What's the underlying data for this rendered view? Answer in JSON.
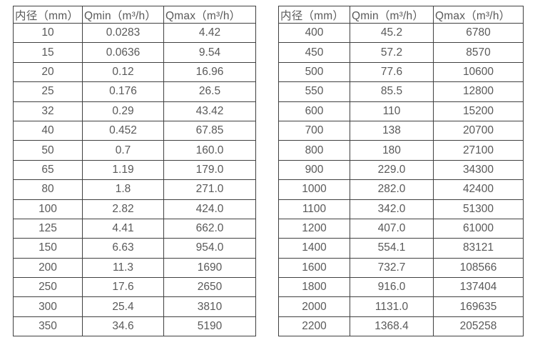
{
  "page": {
    "background": "#ffffff",
    "border_color": "#404040",
    "text_color": "#595959"
  },
  "tables": [
    {
      "name": "flow-table-left",
      "headers": [
        "内径（mm）",
        "Qmin（m³/h）",
        "Qmax（m³/h）"
      ],
      "rows": [
        [
          "10",
          "0.0283",
          "4.42"
        ],
        [
          "15",
          "0.0636",
          "9.54"
        ],
        [
          "20",
          "0.12",
          "16.96"
        ],
        [
          "25",
          "0.176",
          "26.5"
        ],
        [
          "32",
          "0.29",
          "43.42"
        ],
        [
          "40",
          "0.452",
          "67.85"
        ],
        [
          "50",
          "0.7",
          "160.0"
        ],
        [
          "65",
          "1.19",
          "179.0"
        ],
        [
          "80",
          "1.8",
          "271.0"
        ],
        [
          "100",
          "2.82",
          "424.0"
        ],
        [
          "125",
          "4.41",
          "662.0"
        ],
        [
          "150",
          "6.63",
          "954.0"
        ],
        [
          "200",
          "11.3",
          "1690"
        ],
        [
          "250",
          "17.6",
          "2650"
        ],
        [
          "300",
          "25.4",
          "3810"
        ],
        [
          "350",
          "34.6",
          "5190"
        ]
      ]
    },
    {
      "name": "flow-table-right",
      "headers": [
        "内径（mm）",
        "Qmin（m³/h）",
        "Qmax（m³/h）"
      ],
      "rows": [
        [
          "400",
          "45.2",
          "6780"
        ],
        [
          "450",
          "57.2",
          "8570"
        ],
        [
          "500",
          "77.6",
          "10600"
        ],
        [
          "550",
          "85.5",
          "12800"
        ],
        [
          "600",
          "110",
          "15200"
        ],
        [
          "700",
          "138",
          "20700"
        ],
        [
          "800",
          "180",
          "27100"
        ],
        [
          "900",
          "229.0",
          "34300"
        ],
        [
          "1000",
          "282.0",
          "42400"
        ],
        [
          "1100",
          "342.0",
          "51300"
        ],
        [
          "1200",
          "407.0",
          "61000"
        ],
        [
          "1400",
          "554.1",
          "83121"
        ],
        [
          "1600",
          "732.7",
          "108566"
        ],
        [
          "1800",
          "916.0",
          "137404"
        ],
        [
          "2000",
          "1131.0",
          "169635"
        ],
        [
          "2200",
          "1368.4",
          "205258"
        ]
      ]
    }
  ]
}
